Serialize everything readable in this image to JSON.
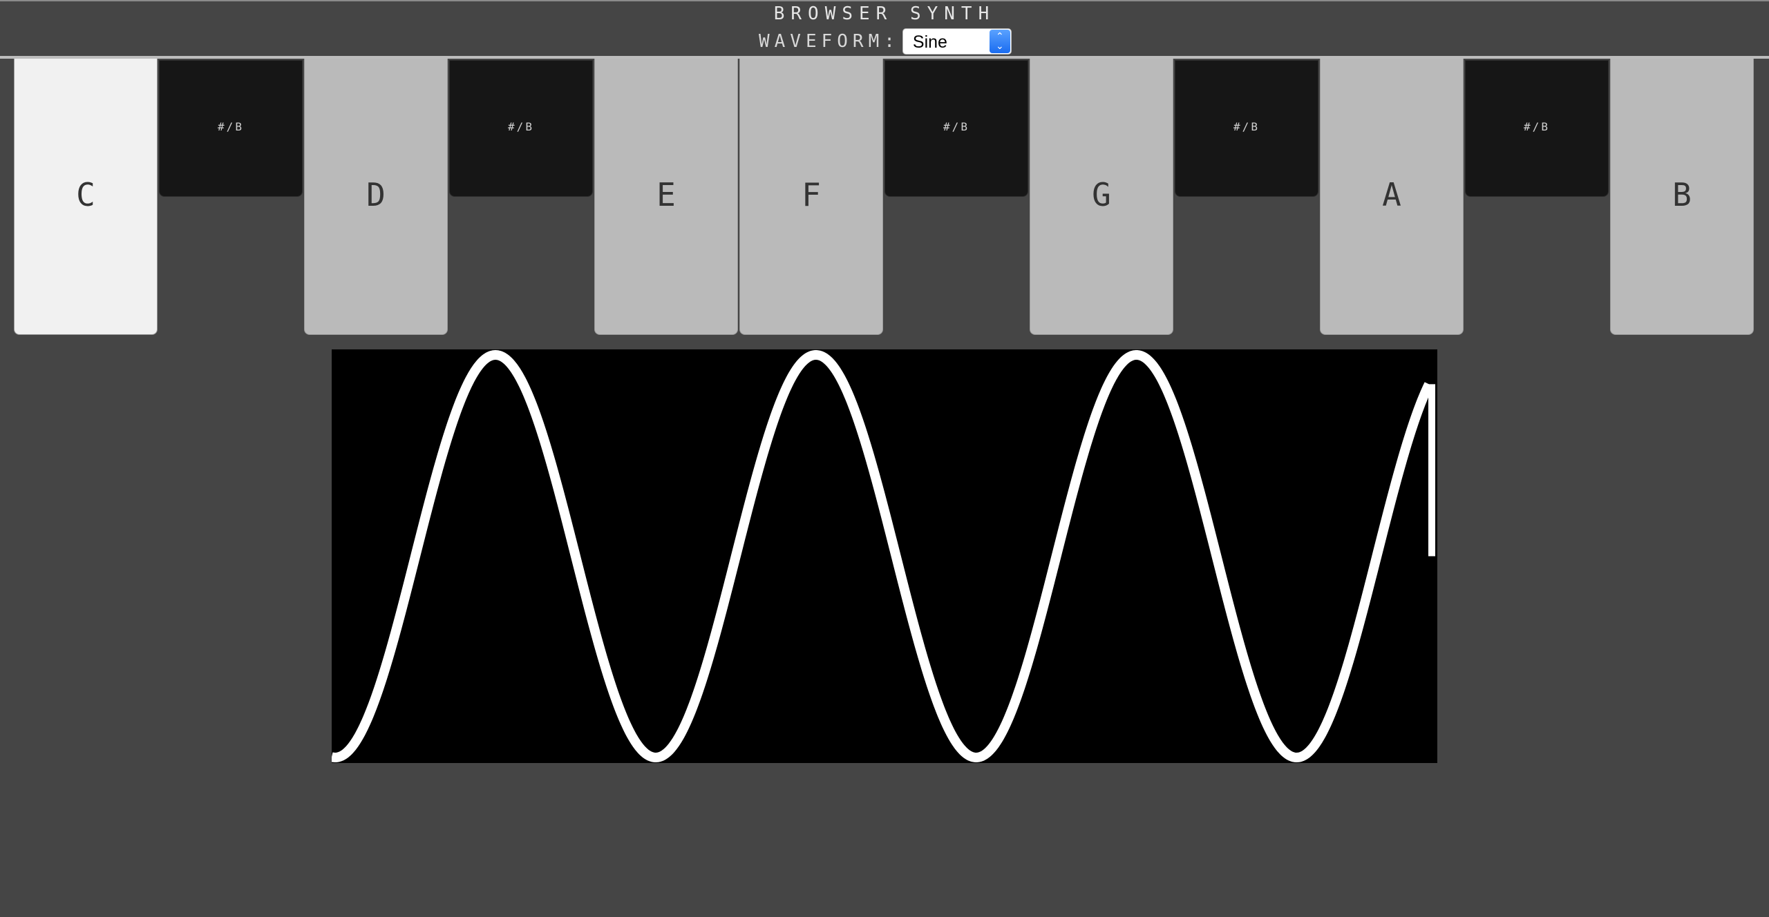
{
  "header": {
    "title": "BROWSER SYNTH",
    "waveform_label": "WAVEFORM:",
    "waveform_value": "Sine"
  },
  "keyboard": {
    "white_keys": [
      {
        "label": "C",
        "active": true
      },
      {
        "label": "D",
        "active": false
      },
      {
        "label": "E",
        "active": false
      },
      {
        "label": "F",
        "active": false
      },
      {
        "label": "G",
        "active": false
      },
      {
        "label": "A",
        "active": false
      },
      {
        "label": "B",
        "active": false
      }
    ],
    "black_keys": [
      {
        "label": "#/B"
      },
      {
        "label": "#/B"
      },
      {
        "label": "#/B"
      },
      {
        "label": "#/B"
      },
      {
        "label": "#/B"
      }
    ]
  },
  "oscilloscope": {
    "waveform": "sine",
    "cycles_visible": 3.45,
    "line_color": "#ffffff",
    "background_color": "#000000"
  },
  "colors": {
    "page_background": "#454545",
    "white_key": "#bababa",
    "white_key_active": "#f1f1f1",
    "black_key": "#161616"
  }
}
